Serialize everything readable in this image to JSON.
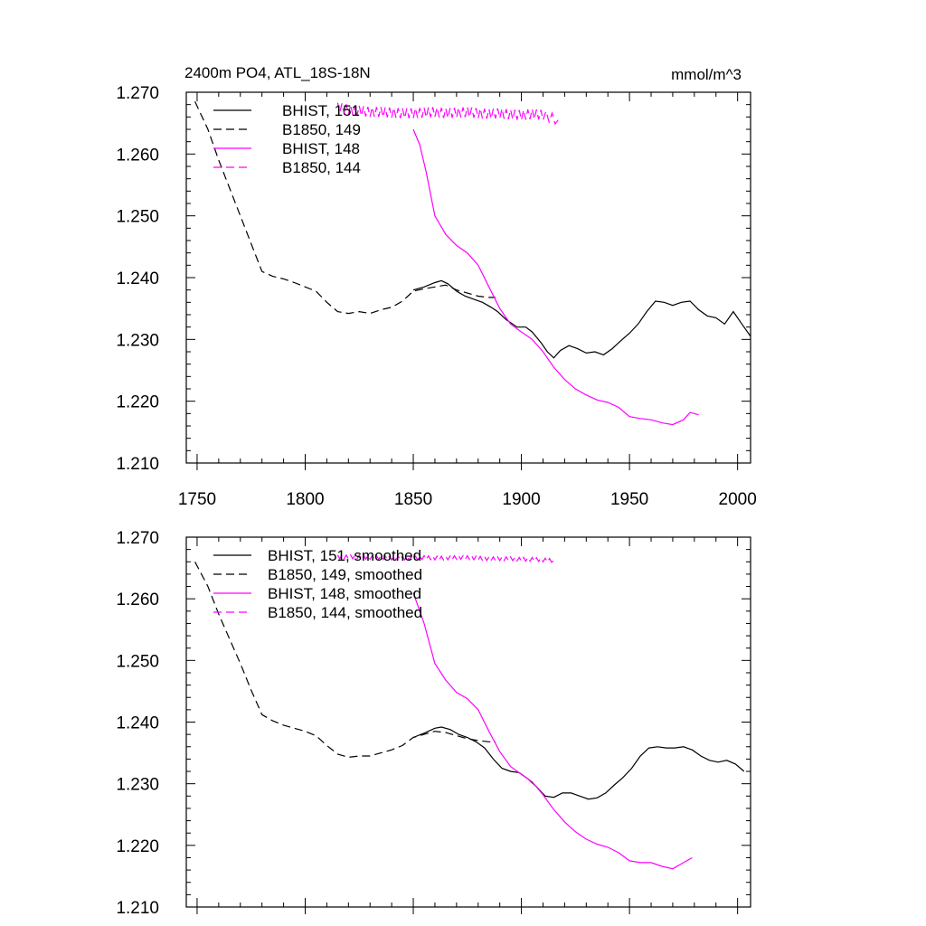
{
  "chart_data": [
    {
      "type": "line",
      "title": "2400m PO4, ATL_18S-18N",
      "units": "mmol/m^3",
      "xlim": [
        1745,
        2006
      ],
      "ylim": [
        1.21,
        1.27
      ],
      "xticks": [
        "1750",
        "1800",
        "1850",
        "1900",
        "1950",
        "2000"
      ],
      "yticks": [
        "1.210",
        "1.220",
        "1.230",
        "1.240",
        "1.250",
        "1.260",
        "1.270"
      ],
      "show_xtick_labels": true,
      "legend_position": "top-left",
      "series": [
        {
          "name": "BHIST, 151",
          "color": "#000000",
          "dash": "solid",
          "x": [
            1850,
            1855,
            1860,
            1863,
            1866,
            1870,
            1874,
            1878,
            1882,
            1886,
            1889,
            1893,
            1898,
            1902,
            1905,
            1909,
            1912,
            1915,
            1918,
            1922,
            1926,
            1930,
            1934,
            1938,
            1942,
            1946,
            1950,
            1954,
            1958,
            1962,
            1966,
            1970,
            1974,
            1978,
            1982,
            1986,
            1990,
            1994,
            1998,
            2002,
            2006
          ],
          "y": [
            1.238,
            1.2385,
            1.2392,
            1.2395,
            1.239,
            1.2378,
            1.237,
            1.2365,
            1.236,
            1.2352,
            1.2345,
            1.2332,
            1.232,
            1.232,
            1.2312,
            1.2295,
            1.228,
            1.227,
            1.2282,
            1.229,
            1.2285,
            1.2278,
            1.228,
            1.2275,
            1.2285,
            1.2298,
            1.231,
            1.2325,
            1.2345,
            1.2362,
            1.236,
            1.2355,
            1.236,
            1.2362,
            1.2348,
            1.2338,
            1.2335,
            1.2325,
            1.2345,
            1.2325,
            1.2305
          ]
        },
        {
          "name": "B1850, 149",
          "color": "#000000",
          "dash": "dashed",
          "x": [
            1749,
            1755,
            1760,
            1765,
            1770,
            1775,
            1780,
            1785,
            1790,
            1795,
            1800,
            1805,
            1810,
            1815,
            1820,
            1825,
            1830,
            1835,
            1840,
            1845,
            1850,
            1855,
            1860,
            1865,
            1870,
            1875,
            1880,
            1885,
            1888
          ],
          "y": [
            1.2685,
            1.264,
            1.259,
            1.2545,
            1.25,
            1.2455,
            1.241,
            1.2402,
            1.2398,
            1.2392,
            1.2385,
            1.2378,
            1.236,
            1.2345,
            1.2342,
            1.2345,
            1.2342,
            1.2348,
            1.2352,
            1.2362,
            1.2378,
            1.2382,
            1.2385,
            1.2388,
            1.238,
            1.2375,
            1.237,
            1.2368,
            1.2368
          ]
        },
        {
          "name": "BHIST, 148",
          "color": "#ff00ff",
          "dash": "solid",
          "x": [
            1850,
            1853,
            1856,
            1860,
            1865,
            1870,
            1875,
            1880,
            1885,
            1890,
            1895,
            1900,
            1905,
            1910,
            1915,
            1920,
            1925,
            1930,
            1935,
            1940,
            1945,
            1950,
            1955,
            1960,
            1965,
            1970,
            1975,
            1978,
            1982
          ],
          "y": [
            1.264,
            1.2615,
            1.257,
            1.25,
            1.247,
            1.2452,
            1.244,
            1.242,
            1.2385,
            1.235,
            1.2325,
            1.2312,
            1.23,
            1.228,
            1.2255,
            1.2235,
            1.222,
            1.221,
            1.2202,
            1.2198,
            1.219,
            1.2175,
            1.2172,
            1.217,
            1.2165,
            1.2162,
            1.217,
            1.2182,
            1.2178
          ]
        },
        {
          "name": "B1850, 144",
          "color": "#ff00ff",
          "dash": "dashed",
          "oscillation": 0.0008,
          "x": [
            1815,
            1820,
            1825,
            1830,
            1835,
            1840,
            1845,
            1850,
            1855,
            1860,
            1865,
            1870,
            1875,
            1880,
            1885,
            1890,
            1895,
            1900,
            1905,
            1910,
            1917
          ],
          "y": [
            1.2675,
            1.2672,
            1.267,
            1.2668,
            1.2668,
            1.2667,
            1.2666,
            1.2666,
            1.2667,
            1.2668,
            1.2666,
            1.2667,
            1.2668,
            1.2666,
            1.2665,
            1.2666,
            1.2664,
            1.2663,
            1.2665,
            1.2663,
            1.2655
          ]
        }
      ]
    },
    {
      "type": "line",
      "title": "",
      "units": "",
      "xlim": [
        1745,
        2006
      ],
      "ylim": [
        1.21,
        1.27
      ],
      "xticks": [
        "1750",
        "1800",
        "1850",
        "1900",
        "1950",
        "2000"
      ],
      "yticks": [
        "1.210",
        "1.220",
        "1.230",
        "1.240",
        "1.250",
        "1.260",
        "1.270"
      ],
      "show_xtick_labels": false,
      "legend_position": "top-left",
      "series": [
        {
          "name": "BHIST, 151, smoothed",
          "color": "#000000",
          "dash": "solid",
          "x": [
            1850,
            1855,
            1860,
            1863,
            1867,
            1871,
            1875,
            1879,
            1883,
            1887,
            1891,
            1895,
            1899,
            1903,
            1907,
            1911,
            1915,
            1919,
            1923,
            1927,
            1931,
            1935,
            1939,
            1943,
            1947,
            1951,
            1955,
            1959,
            1963,
            1967,
            1971,
            1975,
            1979,
            1983,
            1987,
            1991,
            1995,
            1999,
            2003
          ],
          "y": [
            1.2375,
            1.2382,
            1.239,
            1.2392,
            1.2388,
            1.238,
            1.2375,
            1.2368,
            1.2358,
            1.234,
            1.2325,
            1.232,
            1.2318,
            1.2308,
            1.2295,
            1.228,
            1.2278,
            1.2285,
            1.2285,
            1.228,
            1.2275,
            1.2277,
            1.2285,
            1.2298,
            1.231,
            1.2325,
            1.2345,
            1.2358,
            1.236,
            1.2358,
            1.2358,
            1.236,
            1.2355,
            1.2345,
            1.2338,
            1.2335,
            1.2338,
            1.2332,
            1.232
          ]
        },
        {
          "name": "B1850, 149, smoothed",
          "color": "#000000",
          "dash": "dashed",
          "x": [
            1749,
            1755,
            1760,
            1765,
            1770,
            1775,
            1780,
            1785,
            1790,
            1795,
            1800,
            1805,
            1810,
            1815,
            1820,
            1825,
            1830,
            1835,
            1840,
            1845,
            1850,
            1855,
            1860,
            1865,
            1870,
            1875,
            1880,
            1885,
            1888
          ],
          "y": [
            1.266,
            1.262,
            1.2575,
            1.2535,
            1.2495,
            1.2452,
            1.2412,
            1.2402,
            1.2395,
            1.239,
            1.2385,
            1.2378,
            1.2362,
            1.2348,
            1.2343,
            1.2345,
            1.2345,
            1.235,
            1.2355,
            1.2362,
            1.2375,
            1.238,
            1.2385,
            1.2383,
            1.2378,
            1.2373,
            1.237,
            1.2368,
            1.2368
          ]
        },
        {
          "name": "BHIST, 148, smoothed",
          "color": "#ff00ff",
          "dash": "solid",
          "x": [
            1850,
            1855,
            1860,
            1865,
            1870,
            1875,
            1880,
            1885,
            1890,
            1895,
            1900,
            1905,
            1910,
            1915,
            1920,
            1925,
            1930,
            1935,
            1940,
            1945,
            1950,
            1955,
            1960,
            1965,
            1970,
            1975,
            1979
          ],
          "y": [
            1.261,
            1.256,
            1.2495,
            1.2468,
            1.2448,
            1.2438,
            1.242,
            1.2385,
            1.2352,
            1.2328,
            1.2315,
            1.2303,
            1.2282,
            1.2258,
            1.2238,
            1.2222,
            1.221,
            1.2202,
            1.2197,
            1.2188,
            1.2175,
            1.2172,
            1.2172,
            1.2166,
            1.2162,
            1.2172,
            1.218
          ]
        },
        {
          "name": "B1850, 144, smoothed",
          "color": "#ff00ff",
          "dash": "dashed",
          "oscillation": 0.0003,
          "x": [
            1815,
            1820,
            1825,
            1830,
            1835,
            1840,
            1845,
            1850,
            1855,
            1860,
            1865,
            1870,
            1875,
            1880,
            1885,
            1890,
            1895,
            1900,
            1905,
            1910,
            1915
          ],
          "y": [
            1.2668,
            1.2668,
            1.2668,
            1.2667,
            1.2667,
            1.2666,
            1.2666,
            1.2666,
            1.2667,
            1.2666,
            1.2666,
            1.2667,
            1.2667,
            1.2666,
            1.2665,
            1.2665,
            1.2665,
            1.2664,
            1.2664,
            1.2663,
            1.2662
          ]
        }
      ]
    }
  ]
}
